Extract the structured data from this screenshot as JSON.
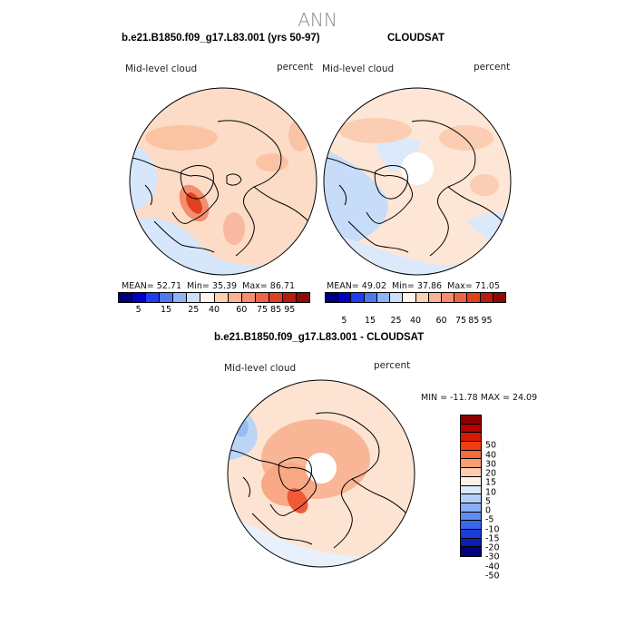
{
  "season": "ANN",
  "colors": {
    "abs_scale": [
      "#00007a",
      "#0000c8",
      "#1e3cf0",
      "#4c78f0",
      "#8fb4f5",
      "#cde0fa",
      "#fff5ea",
      "#fcd2b6",
      "#f9b394",
      "#f58e6e",
      "#ef6444",
      "#e0401e",
      "#b71c0c",
      "#8a0c04"
    ],
    "diff_scale": [
      "#8a0000",
      "#b40000",
      "#d61a04",
      "#f03c10",
      "#f86a3c",
      "#fa9c74",
      "#fcccb0",
      "#fff0e6",
      "#dce9fb",
      "#b2cff8",
      "#88b0f4",
      "#5f8ef0",
      "#3a67ea",
      "#1b3cd8",
      "#0a1fb0",
      "#000080"
    ],
    "land": "#000000"
  },
  "panels": [
    {
      "title": "b.e21.B1850.f09_g17.L83.001 (yrs 50-97)",
      "variable": "Mid-level cloud",
      "units": "percent",
      "stats_text": {
        "mean_label": "MEAN=",
        "mean": "52.71",
        "min_label": "Min=",
        "min": "35.39",
        "max_label": "Max=",
        "max": "86.71"
      }
    },
    {
      "title": "CLOUDSAT",
      "variable": "Mid-level cloud",
      "units": "percent",
      "stats_text": {
        "mean_label": "MEAN=",
        "mean": "49.02",
        "min_label": "Min=",
        "min": "37.86",
        "max_label": "Max=",
        "max": "71.05"
      }
    },
    {
      "title": "b.e21.B1850.f09_g17.L83.001 - CLOUDSAT",
      "variable": "Mid-level cloud",
      "units": "percent",
      "minmax_text": "MIN = -11.78 MAX =  24.09"
    }
  ],
  "chart_data": [
    {
      "type": "heatmap",
      "title": "b.e21.B1850.f09_g17.L83.001 (yrs 50-97)",
      "projection": "north polar stereographic",
      "variable": "Mid-level cloud",
      "units": "percent",
      "mean": 52.71,
      "min": 35.39,
      "max": 86.71,
      "colorbar_levels": [
        5,
        15,
        25,
        40,
        60,
        75,
        85,
        95
      ]
    },
    {
      "type": "heatmap",
      "title": "CLOUDSAT",
      "projection": "north polar stereographic",
      "variable": "Mid-level cloud",
      "units": "percent",
      "mean": 49.02,
      "min": 37.86,
      "max": 71.05,
      "colorbar_levels": [
        5,
        15,
        25,
        40,
        60,
        75,
        85,
        95
      ]
    },
    {
      "type": "heatmap",
      "title": "b.e21.B1850.f09_g17.L83.001 - CLOUDSAT",
      "projection": "north polar stereographic",
      "variable": "Mid-level cloud",
      "units": "percent",
      "min": -11.78,
      "max": 24.09,
      "colorbar_levels": [
        50,
        40,
        30,
        20,
        15,
        10,
        5,
        0,
        -5,
        -10,
        -15,
        -20,
        -30,
        -40,
        -50
      ]
    }
  ]
}
